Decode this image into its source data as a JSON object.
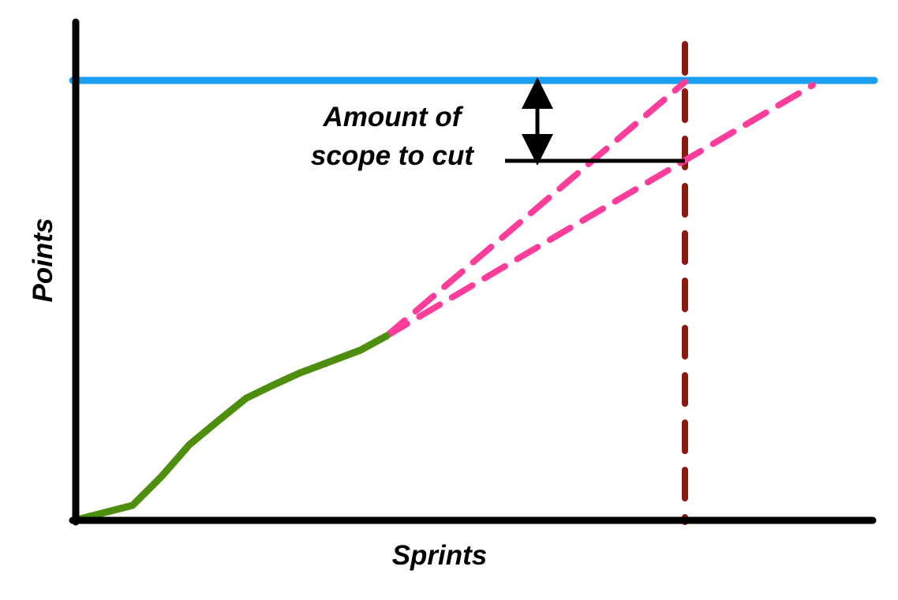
{
  "axes": {
    "y_label": "Points",
    "x_label": "Sprints"
  },
  "annotation": {
    "lines": [
      "Amount of",
      "scope to cut"
    ]
  }
}
